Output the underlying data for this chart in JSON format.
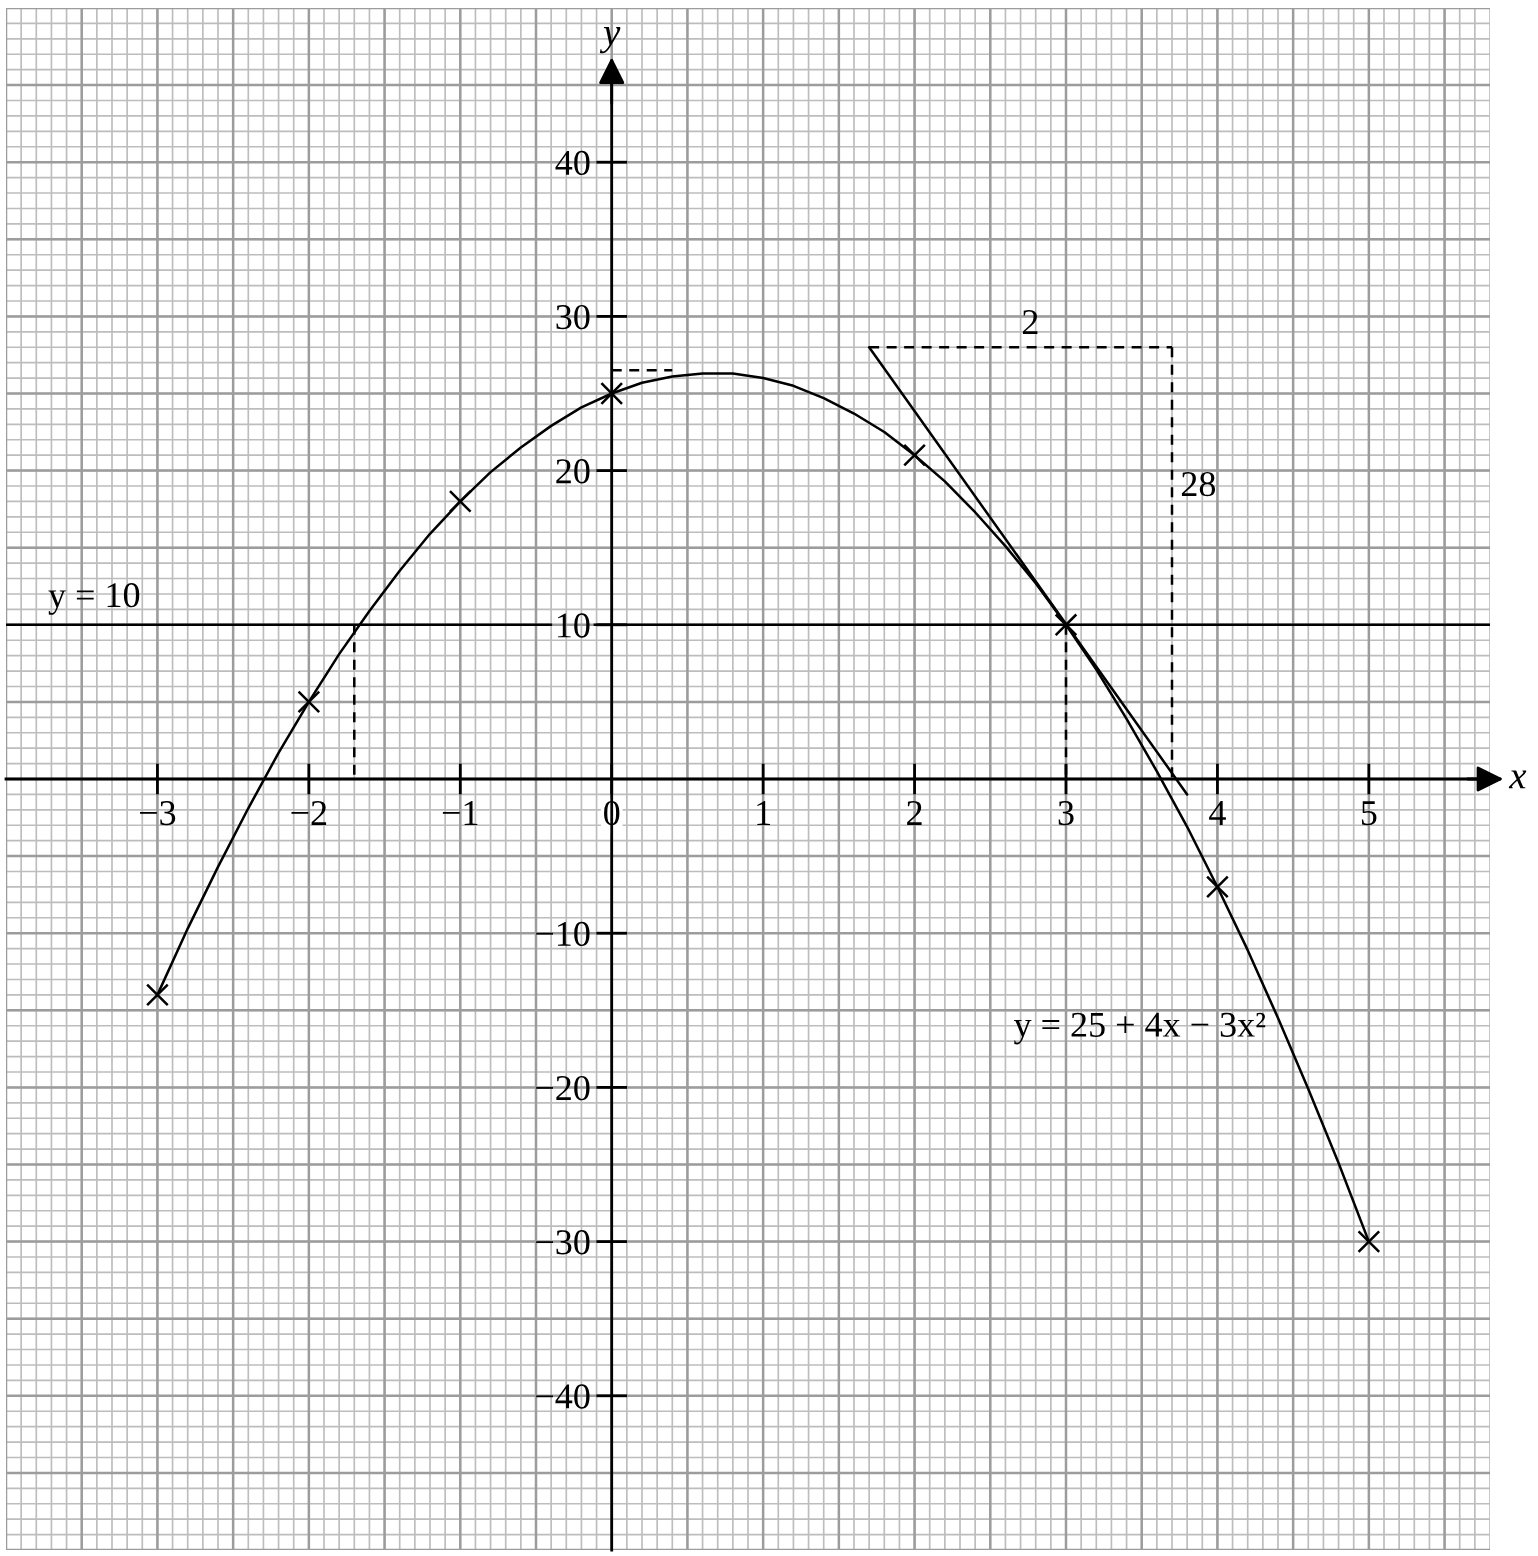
{
  "chart_data": {
    "type": "line",
    "xlabel": "x",
    "ylabel": "y",
    "xlim": [
      -4,
      5.8
    ],
    "ylim": [
      -50,
      50
    ],
    "xticks": [
      {
        "value": -3,
        "label": "−3"
      },
      {
        "value": -2,
        "label": "−2"
      },
      {
        "value": -1,
        "label": "−1"
      },
      0,
      1,
      2,
      3,
      4,
      5
    ],
    "yticks": [
      {
        "value": -40,
        "label": "−40"
      },
      {
        "value": -30,
        "label": "−30"
      },
      {
        "value": -20,
        "label": "−20"
      },
      {
        "value": -10,
        "label": "−10"
      },
      10,
      20,
      30,
      40
    ],
    "grid": true,
    "ref_lines": [
      {
        "axis": "y",
        "value": 10,
        "label": "y = 10",
        "color": "#000000"
      }
    ],
    "annotations": [
      {
        "text": "2",
        "x": 2.65,
        "y": 28
      },
      {
        "text": "28",
        "x": 3.7,
        "y": 17.5
      }
    ],
    "series": [
      {
        "name": "y = 25 + 4x − 3x²",
        "color": "#000000",
        "x": [
          -3,
          -2.8,
          -2.6,
          -2.4,
          -2.2,
          -2,
          -1.8,
          -1.6,
          -1.4,
          -1.2,
          -1,
          -0.8,
          -0.6,
          -0.4,
          -0.2,
          0,
          0.2,
          0.4,
          0.6,
          0.8,
          1,
          1.2,
          1.4,
          1.6,
          1.8,
          2,
          2.2,
          2.4,
          2.6,
          2.8,
          3,
          3.2,
          3.4,
          3.6,
          3.8,
          4,
          4.2,
          4.4,
          4.6,
          4.8,
          5
        ],
        "values": [
          -14,
          -9.7,
          -5.7,
          -1.9,
          1.7,
          5,
          8.1,
          10.9,
          13.5,
          15.9,
          18,
          19.9,
          21.5,
          22.9,
          24.1,
          25,
          25.7,
          26.1,
          26.3,
          26.3,
          26,
          25.5,
          24.7,
          23.7,
          22.5,
          21,
          19.3,
          17.3,
          15.1,
          12.7,
          10,
          7.1,
          3.9,
          0.5,
          -3.1,
          -7,
          -11.1,
          -15.5,
          -20.1,
          -24.9,
          -30
        ]
      },
      {
        "type": "scatter",
        "marker": "cross",
        "color": "#000000",
        "x": [
          -3,
          -2,
          -1,
          0,
          2,
          3,
          4,
          5
        ],
        "values": [
          -14,
          5,
          18,
          25,
          21,
          10,
          -7,
          -30
        ]
      },
      {
        "color": "#000000",
        "x": [
          1.7,
          3.8
        ],
        "values": [
          28,
          -1
        ]
      },
      {
        "line_style": "dashed",
        "color": "#000000",
        "x": [
          -1.7,
          -1.7
        ],
        "values": [
          10,
          0
        ]
      },
      {
        "line_style": "dashed",
        "color": "#000000",
        "x": [
          3,
          3
        ],
        "values": [
          10,
          0
        ]
      },
      {
        "line_style": "dashed",
        "color": "#000000",
        "x": [
          1.7,
          3.7
        ],
        "values": [
          28,
          28
        ]
      },
      {
        "line_style": "dashed",
        "color": "#000000",
        "x": [
          3.7,
          3.7
        ],
        "values": [
          28,
          0
        ]
      },
      {
        "line_style": "dashed",
        "color": "#000000",
        "x": [
          0,
          0.4
        ],
        "values": [
          26.5,
          26.5
        ]
      }
    ]
  }
}
